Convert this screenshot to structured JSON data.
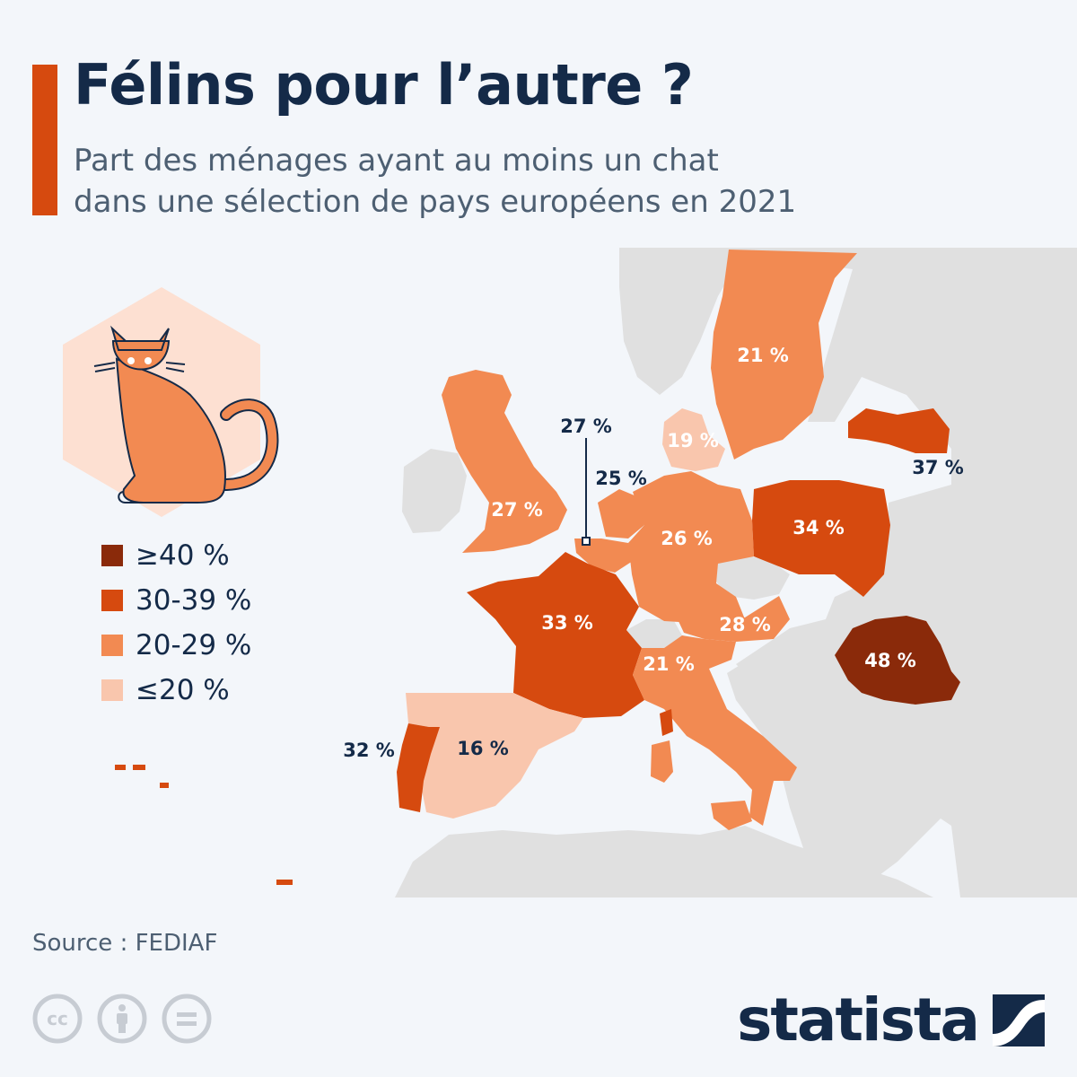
{
  "title": "Félins pour l’autre ?",
  "subtitle_lines": [
    "Part des ménages ayant au moins un chat",
    "dans une sélection de pays européens en 2021"
  ],
  "legend": [
    {
      "label": "≥40 %",
      "color": "#8a2a0a"
    },
    {
      "label": "30-39 %",
      "color": "#d64a0f"
    },
    {
      "label": "20-29 %",
      "color": "#f28a52"
    },
    {
      "label": "≤20 %",
      "color": "#f9c6ad"
    }
  ],
  "countries": [
    {
      "name": "Suède",
      "value": 21,
      "label": "21 %",
      "color": "#f28a52"
    },
    {
      "name": "Danemark",
      "value": 19,
      "label": "19 %",
      "color": "#f9c6ad"
    },
    {
      "name": "Lettonie",
      "value": 37,
      "label": "37 %",
      "color": "#d64a0f"
    },
    {
      "name": "Royaume-Uni",
      "value": 27,
      "label": "27 %",
      "color": "#f28a52"
    },
    {
      "name": "Belgique",
      "value": 27,
      "label": "27 %",
      "color": "#f28a52"
    },
    {
      "name": "Pays-Bas",
      "value": 25,
      "label": "25 %",
      "color": "#f28a52"
    },
    {
      "name": "Allemagne",
      "value": 26,
      "label": "26 %",
      "color": "#f28a52"
    },
    {
      "name": "Pologne",
      "value": 34,
      "label": "34 %",
      "color": "#d64a0f"
    },
    {
      "name": "France",
      "value": 33,
      "label": "33 %",
      "color": "#d64a0f"
    },
    {
      "name": "Autriche",
      "value": 28,
      "label": "28 %",
      "color": "#f28a52"
    },
    {
      "name": "Italie",
      "value": 21,
      "label": "21 %",
      "color": "#f28a52"
    },
    {
      "name": "Roumanie",
      "value": 48,
      "label": "48 %",
      "color": "#8a2a0a"
    },
    {
      "name": "Portugal",
      "value": 32,
      "label": "32 %",
      "color": "#d64a0f"
    },
    {
      "name": "Espagne",
      "value": 16,
      "label": "16 %",
      "color": "#f9c6ad"
    }
  ],
  "colors": {
    "background": "#f3f6fa",
    "other_land": "#e0e0e0",
    "accent": "#d64a0f",
    "dark_text": "#142a48",
    "cat": "#f28a52",
    "cat_badge": "#fde0d2"
  },
  "source": "Source : FEDIAF",
  "license_icons": [
    "creative-commons-icon",
    "attribution-icon",
    "no-derivatives-icon"
  ],
  "logo_text": "statista"
}
